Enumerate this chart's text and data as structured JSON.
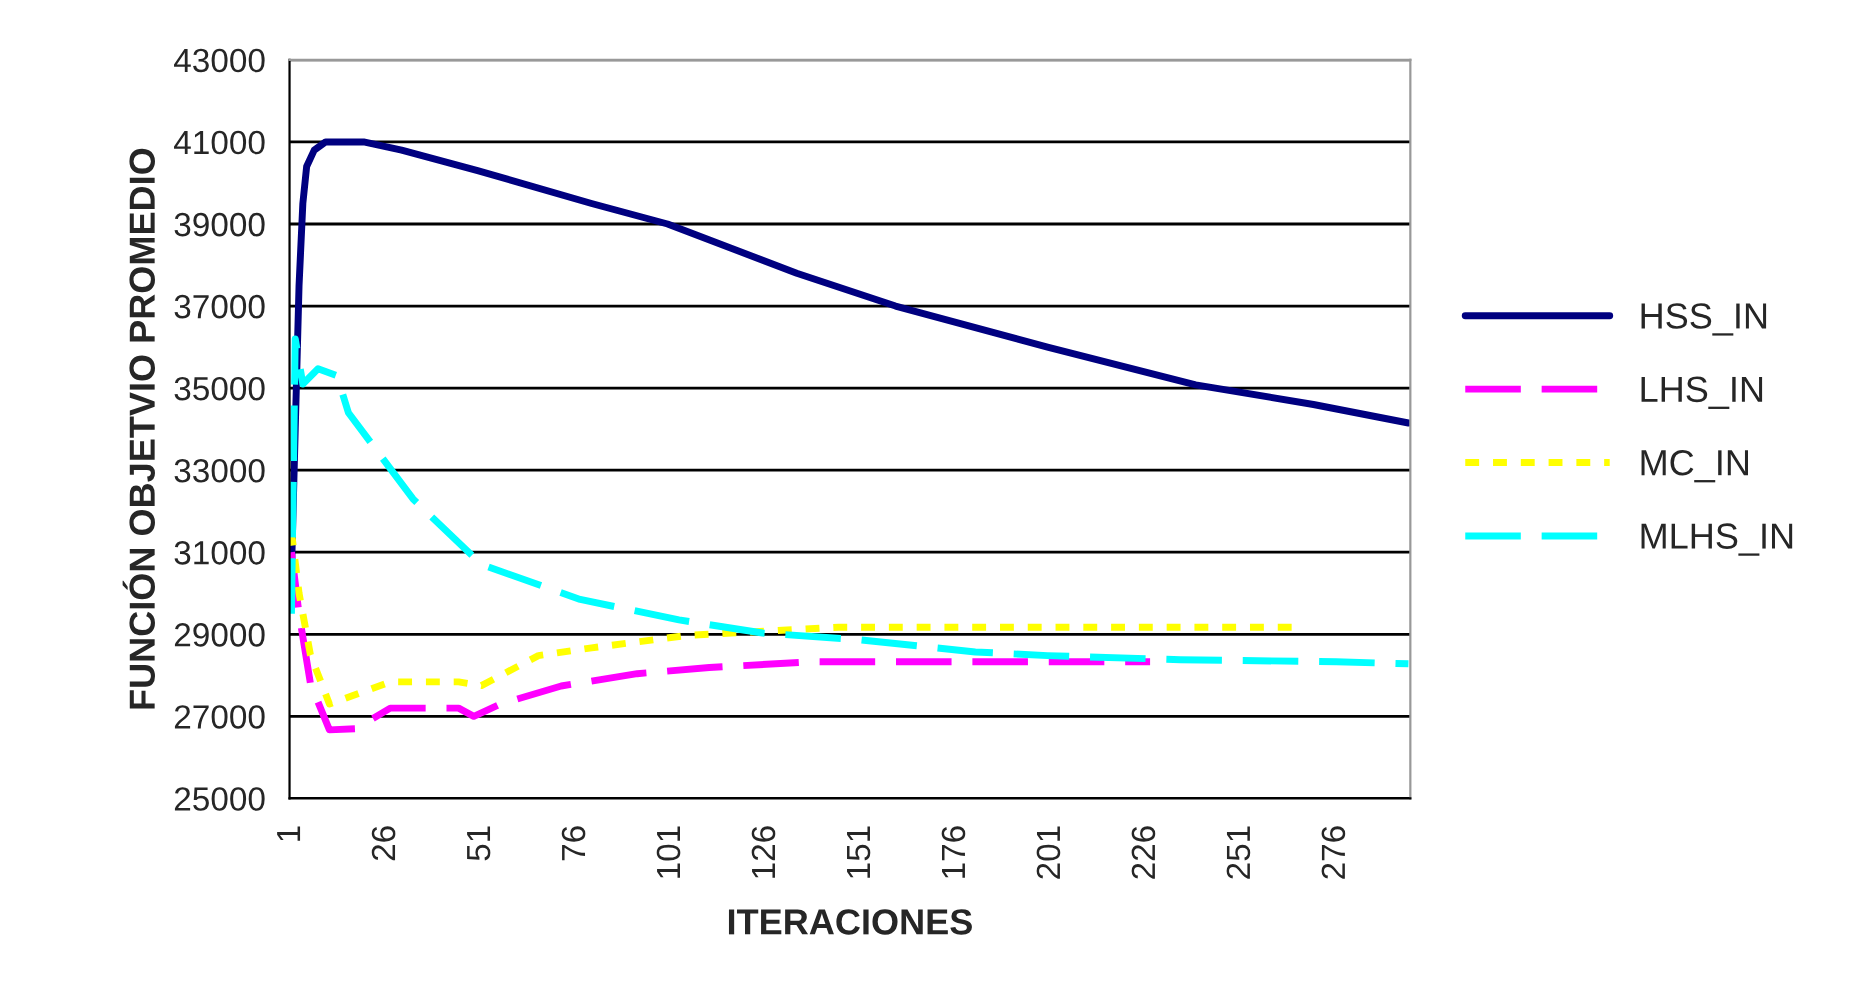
{
  "chart_data": {
    "type": "line",
    "xlabel": "ITERACIONES",
    "ylabel": "FUNCIÓN OBJETVIO PROMEDIO",
    "xlim": [
      0.5,
      295.5
    ],
    "xticks": [
      1,
      26,
      51,
      76,
      101,
      126,
      151,
      176,
      201,
      226,
      251,
      276
    ],
    "ylim": [
      25000,
      43000
    ],
    "yticks": [
      25000,
      27000,
      29000,
      31000,
      33000,
      35000,
      37000,
      39000,
      41000,
      43000
    ],
    "grid": "y",
    "legend": "right",
    "marker": "none",
    "series": [
      {
        "name": "HSS_IN",
        "color": "#000080",
        "line_style": "solid",
        "x": [
          1,
          2,
          3,
          4,
          5,
          7,
          10,
          20,
          30,
          50,
          80,
          100,
          134,
          160,
          200,
          239,
          270,
          295
        ],
        "values": [
          30500,
          34000,
          37500,
          39500,
          40400,
          40800,
          41000,
          41000,
          40800,
          40300,
          39500,
          39000,
          37800,
          37000,
          36000,
          35080,
          34600,
          34150
        ]
      },
      {
        "name": "LHS_IN",
        "color": "#ff00ff",
        "line_style": "dashed",
        "x": [
          1,
          3,
          6,
          11,
          18,
          27,
          45,
          49,
          56,
          72,
          92,
          111,
          138,
          227
        ],
        "values": [
          31000,
          29500,
          27800,
          26670,
          26700,
          27200,
          27200,
          27000,
          27300,
          27740,
          28040,
          28190,
          28330,
          28330
        ]
      },
      {
        "name": "MC_IN",
        "color": "#ffff00",
        "line_style": "dotted",
        "x": [
          1,
          3,
          6,
          11,
          27,
          45,
          51,
          66,
          80,
          105,
          145,
          265
        ],
        "values": [
          31500,
          30000,
          28500,
          27300,
          27840,
          27840,
          27750,
          28480,
          28670,
          28970,
          29170,
          29170
        ]
      },
      {
        "name": "MLHS_IN",
        "color": "#00ffff",
        "line_style": "dashed",
        "x": [
          1,
          2,
          4,
          8,
          13,
          16,
          33,
          51,
          77,
          103,
          125,
          150,
          181,
          200,
          235,
          276,
          295
        ],
        "values": [
          29500,
          36200,
          35100,
          35470,
          35300,
          34400,
          32300,
          30700,
          29850,
          29350,
          29030,
          28870,
          28570,
          28480,
          28380,
          28330,
          28280
        ]
      }
    ]
  }
}
